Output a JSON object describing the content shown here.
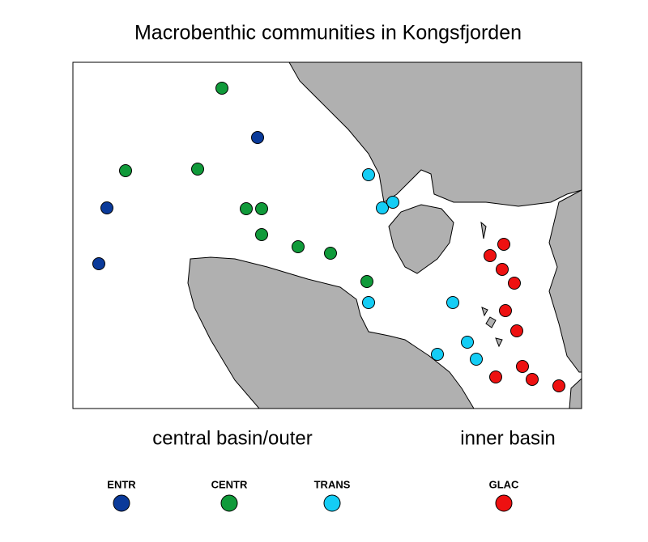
{
  "title": "Macrobenthic communities in Kongsfjorden",
  "regions": [
    "central basin/outer",
    "inner basin"
  ],
  "legend": [
    {
      "name": "ENTR",
      "color": "#0a3a9a"
    },
    {
      "name": "CENTR",
      "color": "#109a3a"
    },
    {
      "name": "TRANS",
      "color": "#14cdf5"
    },
    {
      "name": "GLAC",
      "color": "#ee1111"
    }
  ]
}
